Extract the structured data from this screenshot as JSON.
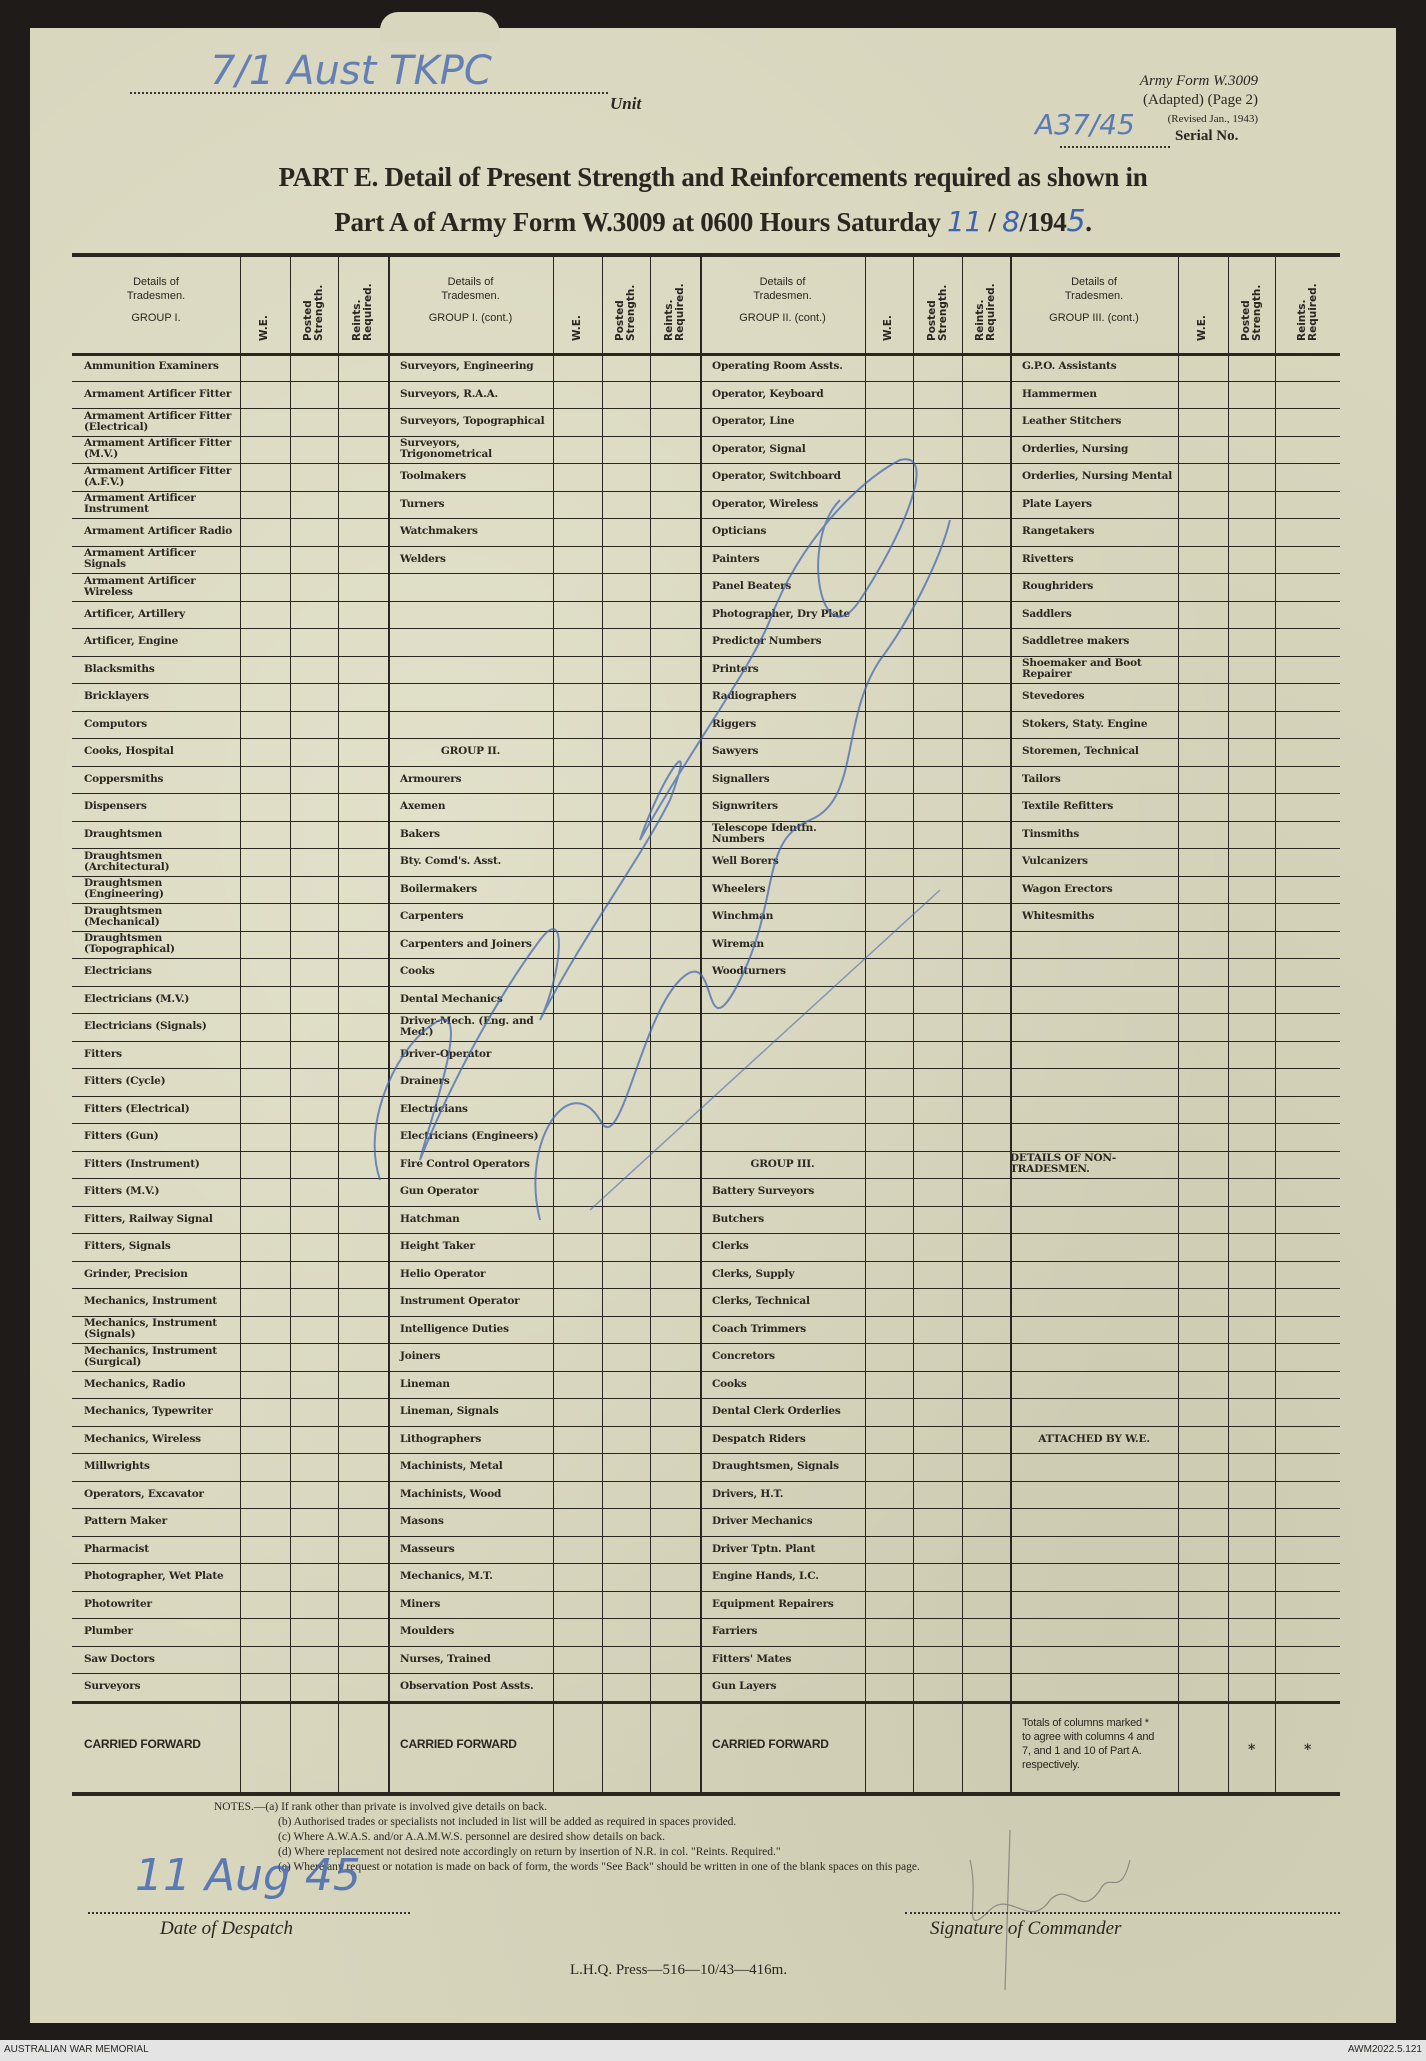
{
  "form": {
    "unit_label": "Unit",
    "unit_value": "7/1 Aust TKPC",
    "ref_line1": "Army Form W.3009",
    "ref_line2": "(Adapted) (Page 2)",
    "ref_line3": "(Revised Jan., 1943)",
    "serial_value": "A37/45",
    "serial_label": "Serial No.",
    "title_line1": "PART E.  Detail of Present Strength and Reinforcements required as shown in",
    "title_line2": "Part A of Army Form W.3009 at 0600 Hours Saturday",
    "date_day": "11",
    "date_month": "8",
    "date_year_prefix": "/194",
    "date_year_suffix": "5",
    "date_end": "."
  },
  "table": {
    "columns": [
      {
        "details": "Details of",
        "tradesmen": "Tradesmen.",
        "group": "GROUP I."
      },
      {
        "details": "Details of",
        "tradesmen": "Tradesmen.",
        "group": "GROUP I. (cont.)"
      },
      {
        "details": "Details of",
        "tradesmen": "Tradesmen.",
        "group": "GROUP II. (cont.)"
      },
      {
        "details": "Details of",
        "tradesmen": "Tradesmen.",
        "group": "GROUP III. (cont.)"
      }
    ],
    "sub_headers": [
      "W.E.",
      "Posted Strength.",
      "Reints. Required."
    ],
    "col1": [
      "Ammunition Examiners",
      "Armament Artificer Fitter",
      "Armament Artificer Fitter (Electrical)",
      "Armament Artificer Fitter (M.V.)",
      "Armament Artificer Fitter (A.F.V.)",
      "Armament Artificer Instrument",
      "Armament Artificer Radio",
      "Armament Artificer Signals",
      "Armament Artificer Wireless",
      "Artificer, Artillery",
      "Artificer, Engine",
      "Blacksmiths",
      "Bricklayers",
      "Computors",
      "Cooks, Hospital",
      "Coppersmiths",
      "Dispensers",
      "Draughtsmen",
      "Draughtsmen (Architectural)",
      "Draughtsmen (Engineering)",
      "Draughtsmen (Mechanical)",
      "Draughtsmen (Topographical)",
      "Electricians",
      "Electricians (M.V.)",
      "Electricians (Signals)",
      "Fitters",
      "Fitters (Cycle)",
      "Fitters (Electrical)",
      "Fitters (Gun)",
      "Fitters (Instrument)",
      "Fitters (M.V.)",
      "Fitters, Railway Signal",
      "Fitters, Signals",
      "Grinder, Precision",
      "Mechanics, Instrument",
      "Mechanics, Instrument (Signals)",
      "Mechanics, Instrument (Surgical)",
      "Mechanics, Radio",
      "Mechanics, Typewriter",
      "Mechanics, Wireless",
      "Millwrights",
      "Operators, Excavator",
      "Pattern Maker",
      "Pharmacist",
      "Photographer, Wet Plate",
      "Photowriter",
      "Plumber",
      "Saw Doctors",
      "Surveyors"
    ],
    "col2": [
      "Surveyors, Engineering",
      "Surveyors, R.A.A.",
      "Surveyors, Topographical",
      "Surveyors, Trigonometrical",
      "Toolmakers",
      "Turners",
      "Watchmakers",
      "Welders",
      "",
      "",
      "",
      "",
      "",
      "",
      "GROUP II.",
      "Armourers",
      "Axemen",
      "Bakers",
      "Bty. Comd's. Asst.",
      "Boilermakers",
      "Carpenters",
      "Carpenters and Joiners",
      "Cooks",
      "Dental Mechanics",
      "Driver-Mech. (Eng. and Med.)",
      "Driver-Operator",
      "Drainers",
      "Electricians",
      "Electricians (Engineers)",
      "Fire Control Operators",
      "Gun Operator",
      "Hatchman",
      "Height Taker",
      "Helio Operator",
      "Instrument Operator",
      "Intelligence Duties",
      "Joiners",
      "Lineman",
      "Lineman, Signals",
      "Lithographers",
      "Machinists, Metal",
      "Machinists, Wood",
      "Masons",
      "Masseurs",
      "Mechanics, M.T.",
      "Miners",
      "Moulders",
      "Nurses, Trained",
      "Observation Post Assts."
    ],
    "col3": [
      "Operating Room Assts.",
      "Operator, Keyboard",
      "Operator, Line",
      "Operator, Signal",
      "Operator, Switchboard",
      "Operator, Wireless",
      "Opticians",
      "Painters",
      "Panel Beaters",
      "Photographer, Dry Plate",
      "Predictor Numbers",
      "Printers",
      "Radiographers",
      "Riggers",
      "Sawyers",
      "Signallers",
      "Signwriters",
      "Telescope Identfn. Numbers",
      "Well Borers",
      "Wheelers",
      "Winchman",
      "Wireman",
      "Woodturners",
      "",
      "",
      "",
      "",
      "",
      "",
      "GROUP III.",
      "Battery Surveyors",
      "Butchers",
      "Clerks",
      "Clerks, Supply",
      "Clerks, Technical",
      "Coach Trimmers",
      "Concretors",
      "Cooks",
      "Dental Clerk Orderlies",
      "Despatch Riders",
      "Draughtsmen, Signals",
      "Drivers, H.T.",
      "Driver Mechanics",
      "Driver Tptn. Plant",
      "Engine Hands, I.C.",
      "Equipment Repairers",
      "Farriers",
      "Fitters' Mates",
      "Gun Layers"
    ],
    "col4": [
      "G.P.O. Assistants",
      "Hammermen",
      "Leather Stitchers",
      "Orderlies, Nursing",
      "Orderlies, Nursing Mental",
      "Plate Layers",
      "Rangetakers",
      "Rivetters",
      "Roughriders",
      "Saddlers",
      "Saddletree makers",
      "Shoemaker and Boot Repairer",
      "Stevedores",
      "Stokers, Staty. Engine",
      "Storemen, Technical",
      "Tailors",
      "Textile Refitters",
      "Tinsmiths",
      "Vulcanizers",
      "Wagon Erectors",
      "Whitesmiths",
      "",
      "",
      "",
      "",
      "",
      "",
      "",
      "",
      "DETAILS OF NON-TRADESMEN.",
      "",
      "",
      "",
      "",
      "",
      "",
      "",
      "",
      "",
      "ATTACHED BY W.E.",
      "",
      "",
      "",
      "",
      "",
      "",
      "",
      "",
      ""
    ],
    "section_headers": [
      "GROUP II.",
      "GROUP III.",
      "DETAILS OF NON-TRADESMEN.",
      "ATTACHED BY W.E."
    ],
    "carried_forward": "CARRIED FORWARD",
    "totals_note": "Totals of columns marked * to agree with columns 4 and 7, and 1 and 10 of Part A. respectively.",
    "asterisk": "*"
  },
  "notes": {
    "a": "NOTES.—(a) If rank other than private is involved give details on back.",
    "b": "(b) Authorised trades or specialists not included in list will be added as required in spaces provided.",
    "c": "(c) Where A.W.A.S. and/or A.A.M.W.S. personnel are desired show details on back.",
    "d": "(d) Where replacement not desired note accordingly on return by insertion of N.R. in col. \"Reints. Required.\"",
    "e": "(e) Where any request or notation is made on back of form, the words \"See Back\" should be written in one of the blank spaces on this page."
  },
  "footer": {
    "despatch_value": "11 Aug 45",
    "despatch_label": "Date of Despatch",
    "signature_label": "Signature of Commander",
    "press": "L.H.Q. Press—516—10/43—416m."
  },
  "archive": {
    "left": "AUSTRALIAN WAR MEMORIAL",
    "right": "AWM2022.5.121"
  },
  "colors": {
    "paper": "#d8d6bd",
    "ink": "#2a2620",
    "handwriting": "#3d62b0"
  }
}
